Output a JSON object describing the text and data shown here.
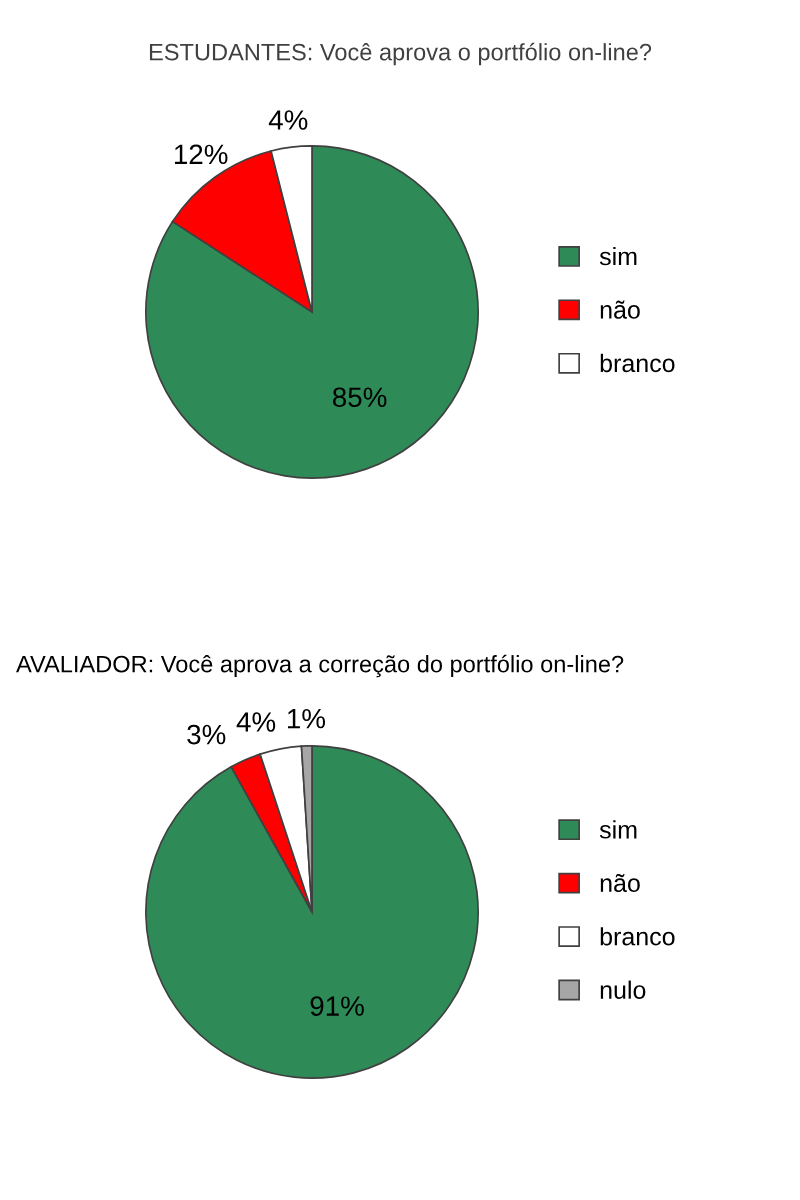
{
  "chart_data": [
    {
      "type": "pie",
      "title": "ESTUDANTES: Você aprova o portfólio on-line?",
      "categories": [
        "sim",
        "não",
        "branco"
      ],
      "values": [
        85,
        12,
        4
      ],
      "colors": [
        "#2e8b57",
        "#ff0000",
        "#ffffff"
      ],
      "value_labels": [
        "85%",
        "12%",
        "4%"
      ],
      "legend": "right"
    },
    {
      "type": "pie",
      "title": "AVALIADOR: Você aprova a correção do portfólio on-line?",
      "categories": [
        "sim",
        "não",
        "branco",
        "nulo"
      ],
      "values": [
        91,
        3,
        4,
        1
      ],
      "colors": [
        "#2e8b57",
        "#ff0000",
        "#ffffff",
        "#a6a6a6"
      ],
      "value_labels": [
        "91%",
        "3%",
        "4%",
        "1%"
      ],
      "legend": "right"
    }
  ]
}
